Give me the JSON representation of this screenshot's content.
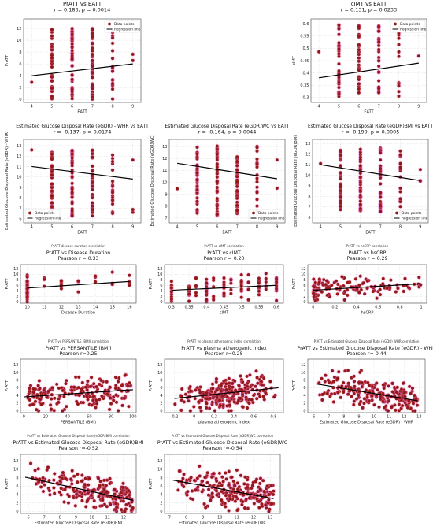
{
  "chart_data": [
    {
      "id": "p1",
      "type": "scatter",
      "title": "PrATT vs EATT",
      "subtitle": "r = 0.183, p = 0.0014",
      "xlabel": "EATT",
      "ylabel": "PrATT",
      "xlim": [
        3.6,
        9.4
      ],
      "ylim": [
        -0.5,
        13.6
      ],
      "xticks": [
        4,
        5,
        6,
        7,
        8,
        9
      ],
      "yticks": [
        0,
        2,
        4,
        6,
        8,
        10,
        12
      ],
      "x_categories": [
        4,
        5,
        6,
        7,
        8,
        9
      ],
      "points_per_category": [
        1,
        36,
        40,
        40,
        18,
        2
      ],
      "y_range": [
        0,
        12
      ],
      "legend": {
        "position": "top-right",
        "items": [
          "Data points",
          "Regression line"
        ]
      },
      "regression": {
        "x": [
          4,
          9
        ],
        "y": [
          4.0,
          6.0
        ]
      },
      "grid": true
    },
    {
      "id": "p2",
      "type": "scatter",
      "title": "cIMT vs EATT",
      "subtitle": "r = 0.131, p = 0.0233",
      "xlabel": "EATT",
      "ylabel": "cIMT",
      "xlim": [
        3.6,
        9.4
      ],
      "ylim": [
        0.28,
        0.62
      ],
      "xticks": [
        4,
        5,
        6,
        7,
        8,
        9
      ],
      "yticks": [
        0.3,
        0.35,
        0.4,
        0.45,
        0.5,
        0.55,
        0.6
      ],
      "x_categories": [
        4,
        5,
        6,
        7,
        8,
        9
      ],
      "points_per_category": [
        1,
        32,
        36,
        32,
        12,
        1
      ],
      "y_range": [
        0.3,
        0.6
      ],
      "legend": {
        "position": "top-right",
        "items": [
          "Data points",
          "Regression line"
        ]
      },
      "regression": {
        "x": [
          4,
          9
        ],
        "y": [
          0.38,
          0.44
        ]
      },
      "grid": true
    },
    {
      "id": "p3",
      "type": "scatter",
      "title": "Estimated Glucose Disposal Rate (eGDR) - WHR  vs EATT",
      "subtitle": "r = -0.137, p = 0.0174",
      "xlabel": "EATT",
      "ylabel": "Estimated Glucose Disposal Rate (eGDR) - WHR",
      "xlim": [
        3.6,
        9.4
      ],
      "ylim": [
        5.6,
        13.6
      ],
      "xticks": [
        4,
        5,
        6,
        7,
        8,
        9
      ],
      "yticks": [
        6,
        7,
        8,
        9,
        10,
        11,
        12,
        13
      ],
      "x_categories": [
        4,
        5,
        6,
        7,
        8,
        9
      ],
      "points_per_category": [
        1,
        36,
        40,
        40,
        18,
        3
      ],
      "y_range": [
        6.2,
        12.6
      ],
      "legend": {
        "position": "bottom-left",
        "items": [
          "Data points",
          "Regression line"
        ]
      },
      "regression": {
        "x": [
          4,
          9
        ],
        "y": [
          11.0,
          9.8
        ]
      },
      "grid": true
    },
    {
      "id": "p4",
      "type": "scatter",
      "title": "Estimated Glucose Disposal Rate (eGDR)WC vs EATT",
      "subtitle": "r = -0.164, p = 0.0044",
      "xlabel": "EATT",
      "ylabel": "Estimated Glucose Disposal Rate (eGDR)WC",
      "xlim": [
        3.6,
        9.4
      ],
      "ylim": [
        6.6,
        13.6
      ],
      "xticks": [
        4,
        5,
        6,
        7,
        8,
        9
      ],
      "yticks": [
        7,
        8,
        9,
        10,
        11,
        12,
        13
      ],
      "x_categories": [
        4,
        5,
        6,
        7,
        8,
        9
      ],
      "points_per_category": [
        1,
        36,
        40,
        40,
        18,
        2
      ],
      "y_range": [
        7.2,
        13.2
      ],
      "legend": {
        "position": "bottom-right",
        "items": [
          "Data points",
          "Regression line"
        ]
      },
      "regression": {
        "x": [
          4,
          9
        ],
        "y": [
          11.6,
          10.3
        ]
      },
      "grid": true
    },
    {
      "id": "p5",
      "type": "scatter",
      "title": "Estimated Glucose Disposal Rate (eGDR)BMI vs EATT",
      "subtitle": "r = -0.199, p = 0.0005",
      "xlabel": "EATT",
      "ylabel": "Estimated Glucose Disposal Rate (eGDR)BMI",
      "xlim": [
        3.6,
        9.4
      ],
      "ylim": [
        5.5,
        13.4
      ],
      "xticks": [
        4,
        5,
        6,
        7,
        8,
        9
      ],
      "yticks": [
        6,
        7,
        8,
        9,
        10,
        11,
        12,
        13
      ],
      "x_categories": [
        4,
        5,
        6,
        7,
        8,
        9
      ],
      "points_per_category": [
        1,
        36,
        40,
        40,
        18,
        3
      ],
      "y_range": [
        6.5,
        12.6
      ],
      "legend": {
        "position": "bottom-right",
        "items": [
          "Data points",
          "Regression line"
        ]
      },
      "regression": {
        "x": [
          4,
          9
        ],
        "y": [
          11.0,
          9.5
        ]
      },
      "grid": true
    },
    {
      "id": "p6",
      "type": "scatter",
      "supertitle": "PrATT disease duration correlation",
      "title": "PrATT vs Disease Duration",
      "subtitle": "Pearson r = 0.33",
      "xlabel": "Disease Duration",
      "ylabel": "PrATT",
      "xlim": [
        9.6,
        16.4
      ],
      "ylim": [
        -0.5,
        13.5
      ],
      "xticks": [
        10,
        11,
        12,
        13,
        14,
        15,
        16
      ],
      "yticks": [
        0,
        2,
        4,
        6,
        8,
        10,
        12
      ],
      "distribution": "discrete",
      "x_categories": [
        10,
        11,
        12,
        13,
        14,
        15,
        16
      ],
      "points_per_category": [
        40,
        3,
        7,
        4,
        3,
        4,
        5
      ],
      "y_range": [
        0,
        12
      ],
      "regression": {
        "x": [
          10,
          16
        ],
        "y": [
          5.0,
          7.4
        ]
      },
      "grid": true
    },
    {
      "id": "p7",
      "type": "scatter",
      "supertitle": "PrATT vs cIMT correlation",
      "title": "PrATT vs cIMT",
      "subtitle": "Pearson r = 0.20",
      "xlabel": "cIMT",
      "ylabel": "PrATT",
      "xlim": [
        0.28,
        0.62
      ],
      "ylim": [
        -0.5,
        13.5
      ],
      "xticks": [
        0.3,
        0.35,
        0.4,
        0.45,
        0.5,
        0.55,
        0.6
      ],
      "yticks": [
        0,
        2,
        4,
        6,
        8,
        10,
        12
      ],
      "distribution": "discrete",
      "x_categories": [
        0.3,
        0.35,
        0.37,
        0.4,
        0.42,
        0.45,
        0.47,
        0.5,
        0.52,
        0.55,
        0.57,
        0.6
      ],
      "points_per_category": [
        12,
        14,
        6,
        14,
        6,
        10,
        6,
        12,
        6,
        10,
        6,
        10
      ],
      "y_range": [
        0,
        12
      ],
      "regression": {
        "x": [
          0.3,
          0.6
        ],
        "y": [
          4.2,
          6.0
        ]
      },
      "grid": true
    },
    {
      "id": "p8",
      "type": "scatter",
      "supertitle": "PrATT vs hsCRP correlation",
      "title": "PrATT vs hsCRP",
      "subtitle": "Pearson r = 0.29",
      "xlabel": "hsCRP",
      "ylabel": "PrATT",
      "xlim": [
        -0.05,
        1.05
      ],
      "ylim": [
        -0.5,
        13.5
      ],
      "xticks": [
        0.0,
        0.2,
        0.4,
        0.6,
        0.8,
        1.0
      ],
      "yticks": [
        0,
        2,
        4,
        6,
        8,
        10,
        12
      ],
      "distribution": "skewed",
      "n_points": 130,
      "x_range": [
        0.0,
        1.0
      ],
      "y_range": [
        0,
        12
      ],
      "regression": {
        "x": [
          0.0,
          1.0
        ],
        "y": [
          4.2,
          6.6
        ]
      },
      "grid": true
    },
    {
      "id": "p9",
      "type": "scatter",
      "supertitle": "PrATT vs PERSANTILE (BMI) correlation",
      "title": "PrATT vs PERSANTILE (BMI)",
      "subtitle": "Pearson r=0.25",
      "xlabel": "PERSANTILE (BMI)",
      "ylabel": "PrATT",
      "xlim": [
        -3,
        103
      ],
      "ylim": [
        -0.5,
        13.5
      ],
      "xticks": [
        0,
        20,
        40,
        60,
        80,
        100
      ],
      "yticks": [
        0,
        2,
        4,
        6,
        8,
        10,
        12
      ],
      "distribution": "uniform",
      "n_points": 200,
      "x_range": [
        2,
        99
      ],
      "y_range": [
        0,
        12
      ],
      "regression": {
        "x": [
          0,
          100
        ],
        "y": [
          3.6,
          5.5
        ]
      },
      "grid": true
    },
    {
      "id": "p10",
      "type": "scatter",
      "supertitle": "PrATT vs plasma atherogenic index correlation",
      "title": "PrATT vs plasma atherogenic index",
      "subtitle": "Pearson r=0.28",
      "xlabel": "plasma atherogenic index",
      "ylabel": "PrATT",
      "xlim": [
        -0.3,
        0.9
      ],
      "ylim": [
        -0.5,
        13.5
      ],
      "xticks": [
        -0.2,
        0.0,
        0.2,
        0.4,
        0.6,
        0.8
      ],
      "yticks": [
        0,
        2,
        4,
        6,
        8,
        10,
        12
      ],
      "distribution": "cloud",
      "n_points": 260,
      "x_range": [
        -0.2,
        0.85
      ],
      "y_range": [
        0,
        12
      ],
      "regression": {
        "x": [
          -0.2,
          0.85
        ],
        "y": [
          3.2,
          6.0
        ]
      },
      "grid": true
    },
    {
      "id": "p11",
      "type": "scatter",
      "supertitle": "PrATT vs Estimated Glucose Disposal Rate (eGDR) WHR correlation",
      "title": "PrATT vs Estimated Glucose Disposal Rate (eGDR) - WHR",
      "subtitle": "Pearson r=-0.44",
      "xlabel": "Estimated Glucose Disposal Rate (eGDR) - WHR",
      "ylabel": "PrATT",
      "xlim": [
        5.6,
        13.4
      ],
      "ylim": [
        -0.5,
        13.5
      ],
      "xticks": [
        6,
        7,
        8,
        9,
        10,
        11,
        12,
        13
      ],
      "yticks": [
        0,
        2,
        4,
        6,
        8,
        10,
        12
      ],
      "distribution": "cloud-right",
      "n_points": 230,
      "x_range": [
        6.2,
        12.9
      ],
      "y_range": [
        0,
        12
      ],
      "regression": {
        "x": [
          6.2,
          12.9
        ],
        "y": [
          7.0,
          2.6
        ]
      },
      "grid": true
    },
    {
      "id": "p12",
      "type": "scatter",
      "supertitle": "PrATT vs Estimated Glucose Disposal Rate (eGDR)BMI correlation",
      "title": "PrATT vs Estimated Glucose Disposal Rate (eGDR)BMI",
      "subtitle": "Pearson r=-0.52",
      "xlabel": "Estimated Glucose Disposal Rate (eGDR)BMI",
      "ylabel": "PrATT",
      "xlim": [
        5.5,
        12.8
      ],
      "ylim": [
        -0.5,
        13.5
      ],
      "xticks": [
        6,
        7,
        8,
        9,
        10,
        11,
        12
      ],
      "yticks": [
        0,
        2,
        4,
        6,
        8,
        10,
        12
      ],
      "distribution": "cloud-right",
      "n_points": 230,
      "x_range": [
        6.0,
        12.6
      ],
      "y_range": [
        0,
        12
      ],
      "regression": {
        "x": [
          5.8,
          12.6
        ],
        "y": [
          8.1,
          2.6
        ]
      },
      "grid": true
    },
    {
      "id": "p13",
      "type": "scatter",
      "supertitle": "PrATT vs Estimated Glucose Disposal Rate (eGDR)WC correlation",
      "title": "PrATT vs Estimated Glucose Disposal Rate (eGDR)WC",
      "subtitle": "Pearson r=-0.54",
      "xlabel": "Estimated Glucose Disposal Rate (eGDR)WC",
      "ylabel": "PrATT",
      "xlim": [
        6.7,
        13.6
      ],
      "ylim": [
        -0.5,
        13.5
      ],
      "xticks": [
        7,
        8,
        9,
        10,
        11,
        12,
        13
      ],
      "yticks": [
        0,
        2,
        4,
        6,
        8,
        10,
        12
      ],
      "distribution": "cloud-right",
      "n_points": 230,
      "x_range": [
        7.2,
        13.2
      ],
      "y_range": [
        0,
        12
      ],
      "regression": {
        "x": [
          7.2,
          13.2
        ],
        "y": [
          7.4,
          3.0
        ]
      },
      "grid": true
    }
  ],
  "colors": {
    "marker_fill": "#8b1a1a",
    "marker_edge": "#b01818",
    "halo": "#f08ad8",
    "regression": "#000000",
    "grid": "#dcdcdc"
  }
}
